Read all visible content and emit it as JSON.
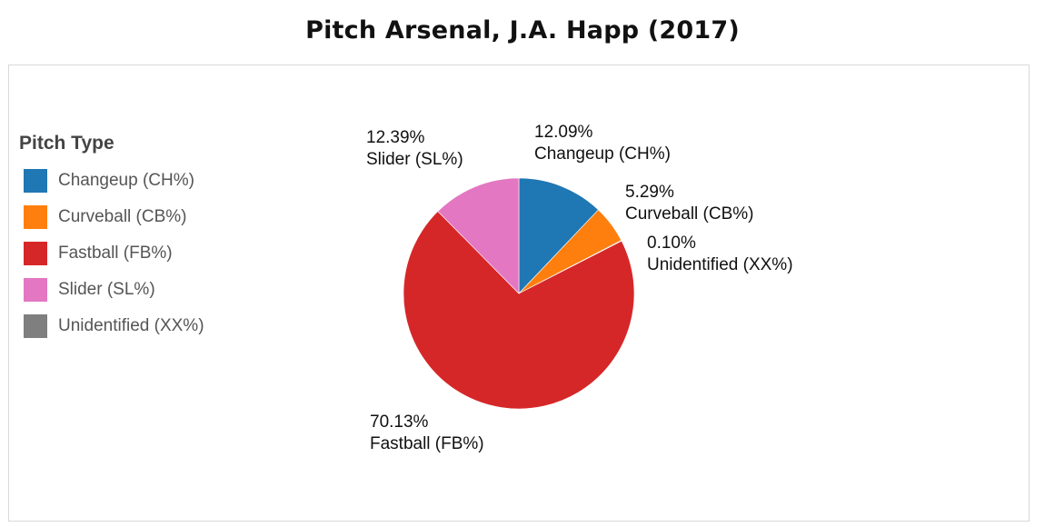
{
  "title": "Pitch Arsenal, J.A. Happ (2017)",
  "legend": {
    "title": "Pitch Type"
  },
  "chart_data": {
    "type": "pie",
    "title": "Pitch Arsenal, J.A. Happ (2017)",
    "legend_title": "Pitch Type",
    "legend_position": "left",
    "slices": [
      {
        "name": "Changeup (CH%)",
        "value": 12.09,
        "label": "12.09%",
        "color": "#1f77b4"
      },
      {
        "name": "Curveball (CB%)",
        "value": 5.29,
        "label": "5.29%",
        "color": "#ff7f0e"
      },
      {
        "name": "Unidentified (XX%)",
        "value": 0.1,
        "label": "0.10%",
        "color": "#7f7f7f"
      },
      {
        "name": "Fastball (FB%)",
        "value": 70.13,
        "label": "70.13%",
        "color": "#d62728"
      },
      {
        "name": "Slider (SL%)",
        "value": 12.39,
        "label": "12.39%",
        "color": "#e377c2"
      }
    ],
    "legend_order": [
      "Changeup (CH%)",
      "Curveball (CB%)",
      "Fastball (FB%)",
      "Slider (SL%)",
      "Unidentified (XX%)"
    ]
  }
}
